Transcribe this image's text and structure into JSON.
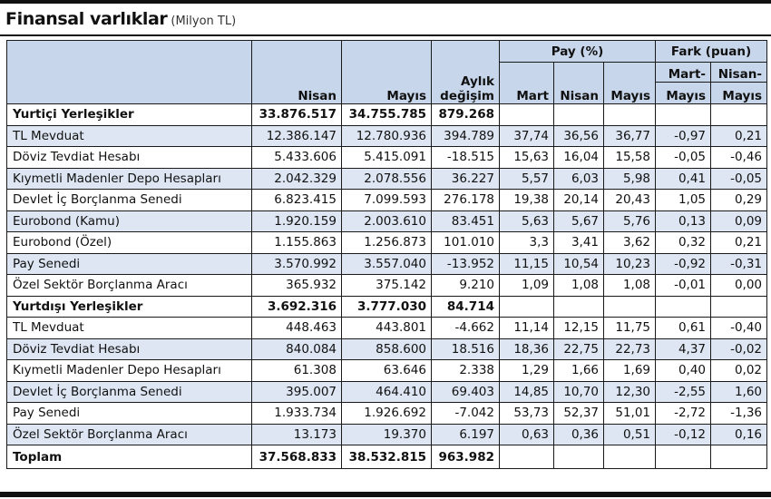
{
  "title": "Finansal varlıklar",
  "unit": "(Milyon TL)",
  "header": {
    "pay_group": "Pay (%)",
    "fark_group": "Fark (puan)",
    "aylik": "Aylık",
    "degisim": "değişim",
    "nisan": "Nisan",
    "mayis": "Mayıs",
    "mart": "Mart",
    "pay_nisan": "Nisan",
    "pay_mayis": "Mayıs",
    "mart_mayis_1": "Mart-",
    "mart_mayis_2": "Mayıs",
    "nisan_mayis_1": "Nisan-",
    "nisan_mayis_2": "Mayıs"
  },
  "rows": [
    {
      "type": "group",
      "label": "Yurtiçi Yerleşikler",
      "values": [
        "33.876.517",
        "34.755.785",
        "879.268",
        "",
        "",
        "",
        "",
        ""
      ]
    },
    {
      "type": "alt",
      "label": "TL Mevduat",
      "values": [
        "12.386.147",
        "12.780.936",
        "394.789",
        "37,74",
        "36,56",
        "36,77",
        "-0,97",
        "0,21"
      ]
    },
    {
      "type": "plain",
      "label": "Döviz Tevdiat Hesabı",
      "values": [
        "5.433.606",
        "5.415.091",
        "-18.515",
        "15,63",
        "16,04",
        "15,58",
        "-0,05",
        "-0,46"
      ]
    },
    {
      "type": "alt",
      "label": "Kıymetli Madenler Depo Hesapları",
      "values": [
        "2.042.329",
        "2.078.556",
        "36.227",
        "5,57",
        "6,03",
        "5,98",
        "0,41",
        "-0,05"
      ]
    },
    {
      "type": "plain",
      "label": "Devlet İç Borçlanma Senedi",
      "values": [
        "6.823.415",
        "7.099.593",
        "276.178",
        "19,38",
        "20,14",
        "20,43",
        "1,05",
        "0,29"
      ]
    },
    {
      "type": "alt",
      "label": "Eurobond (Kamu)",
      "values": [
        "1.920.159",
        "2.003.610",
        "83.451",
        "5,63",
        "5,67",
        "5,76",
        "0,13",
        "0,09"
      ]
    },
    {
      "type": "plain",
      "label": "Eurobond (Özel)",
      "values": [
        "1.155.863",
        "1.256.873",
        "101.010",
        "3,3",
        "3,41",
        "3,62",
        "0,32",
        "0,21"
      ]
    },
    {
      "type": "alt",
      "label": "Pay Senedi",
      "values": [
        "3.570.992",
        "3.557.040",
        "-13.952",
        "11,15",
        "10,54",
        "10,23",
        "-0,92",
        "-0,31"
      ]
    },
    {
      "type": "plain",
      "label": "Özel Sektör Borçlanma Aracı",
      "values": [
        "365.932",
        "375.142",
        "9.210",
        "1,09",
        "1,08",
        "1,08",
        "-0,01",
        "0,00"
      ]
    },
    {
      "type": "group",
      "label": "Yurtdışı Yerleşikler",
      "values": [
        "3.692.316",
        "3.777.030",
        "84.714",
        "",
        "",
        "",
        "",
        ""
      ]
    },
    {
      "type": "plain",
      "label": "TL Mevduat",
      "values": [
        "448.463",
        "443.801",
        "-4.662",
        "11,14",
        "12,15",
        "11,75",
        "0,61",
        "-0,40"
      ]
    },
    {
      "type": "alt",
      "label": "Döviz Tevdiat Hesabı",
      "values": [
        "840.084",
        "858.600",
        "18.516",
        "18,36",
        "22,75",
        "22,73",
        "4,37",
        "-0,02"
      ]
    },
    {
      "type": "plain",
      "label": "Kıymetli Madenler Depo Hesapları",
      "values": [
        "61.308",
        "63.646",
        "2.338",
        "1,29",
        "1,66",
        "1,69",
        "0,40",
        "0,02"
      ]
    },
    {
      "type": "alt",
      "label": "Devlet İç Borçlanma Senedi",
      "values": [
        "395.007",
        "464.410",
        "69.403",
        "14,85",
        "10,70",
        "12,30",
        "-2,55",
        "1,60"
      ]
    },
    {
      "type": "plain",
      "label": "Pay Senedi",
      "values": [
        "1.933.734",
        "1.926.692",
        "-7.042",
        "53,73",
        "52,37",
        "51,01",
        "-2,72",
        "-1,36"
      ]
    },
    {
      "type": "alt",
      "label": "Özel Sektör Borçlanma Aracı",
      "values": [
        "13.173",
        "19.370",
        "6.197",
        "0,63",
        "0,36",
        "0,51",
        "-0,12",
        "0,16"
      ]
    },
    {
      "type": "total",
      "label": "Toplam",
      "values": [
        "37.568.833",
        "38.532.815",
        "963.982",
        "",
        "",
        "",
        "",
        ""
      ]
    }
  ]
}
